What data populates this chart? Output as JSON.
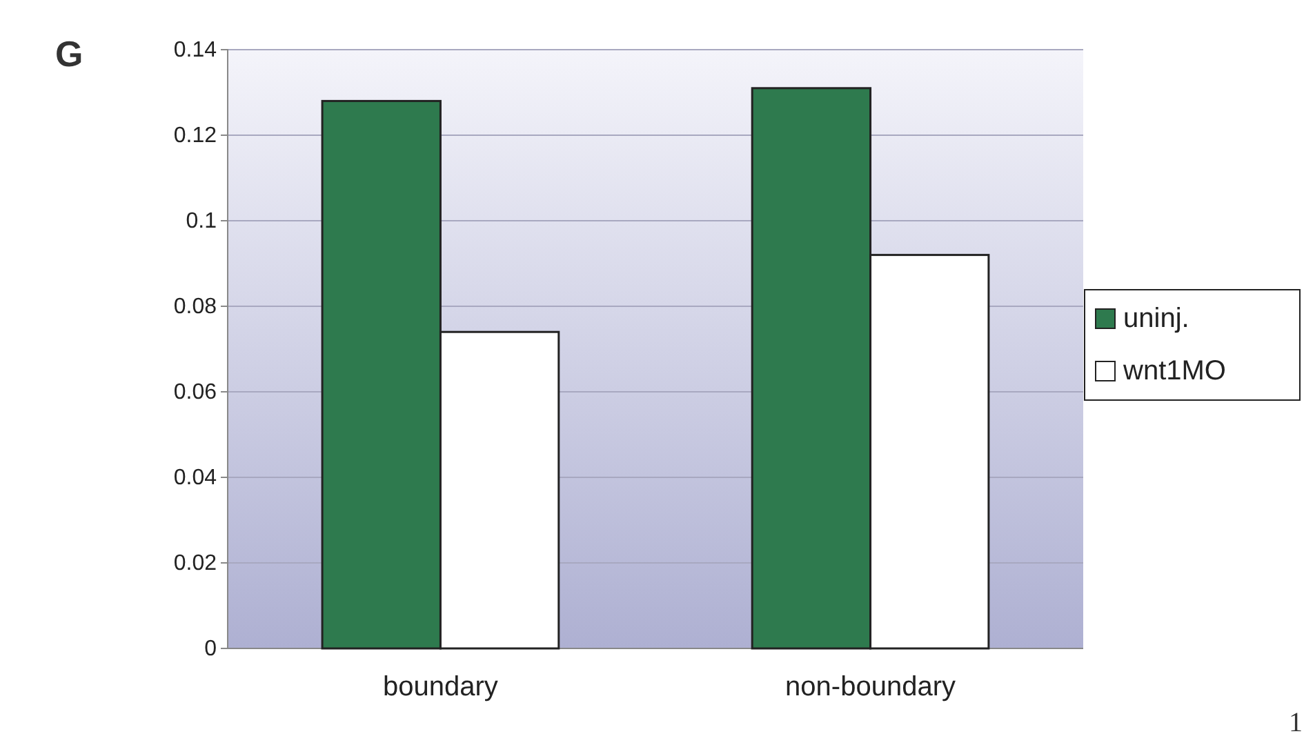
{
  "chart_data": {
    "type": "bar",
    "categories": [
      "boundary",
      "non-boundary"
    ],
    "series": [
      {
        "name": "uninj.",
        "color": "#2e7a4e",
        "values": [
          0.128,
          0.131
        ]
      },
      {
        "name": "wnt1MO",
        "color": "#ffffff",
        "values": [
          0.074,
          0.092
        ]
      }
    ],
    "ylim": [
      0,
      0.14
    ],
    "yticks": [
      0,
      {
        "value": 0.02,
        "label": "0.02"
      },
      {
        "value": 0.04,
        "label": "0.04"
      },
      {
        "value": 0.06,
        "label": "0.06"
      },
      {
        "value": 0.08,
        "label": "0.08"
      },
      {
        "value": 0.1,
        "label": "0.1"
      },
      {
        "value": 0.12,
        "label": "0.12"
      },
      {
        "value": 0.14,
        "label": "0.14"
      }
    ],
    "grid": "y",
    "legend": "right",
    "annotations": [
      "G",
      "1"
    ]
  }
}
